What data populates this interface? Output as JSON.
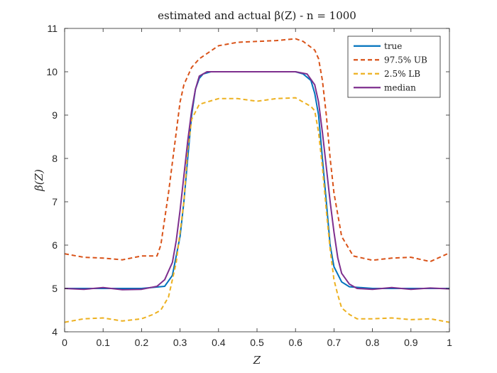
{
  "chart_data": {
    "type": "line",
    "title": "estimated and actual β(Z) - n = 1000",
    "xlabel": "Z",
    "ylabel": "β(Z)",
    "xlim": [
      0,
      1
    ],
    "ylim": [
      4,
      11
    ],
    "xticks": [
      0,
      0.1,
      0.2,
      0.3,
      0.4,
      0.5,
      0.6,
      0.7,
      0.8,
      0.9,
      1
    ],
    "xtick_labels": [
      "0",
      "0.1",
      "0.2",
      "0.3",
      "0.4",
      "0.5",
      "0.6",
      "0.7",
      "0.8",
      "0.9",
      "1"
    ],
    "yticks": [
      4,
      5,
      6,
      7,
      8,
      9,
      10,
      11
    ],
    "ytick_labels": [
      "4",
      "5",
      "6",
      "7",
      "8",
      "9",
      "10",
      "11"
    ],
    "grid": false,
    "legend_position": "top-right",
    "series": [
      {
        "name": "true",
        "color": "#0072BD",
        "dash": "solid",
        "x": [
          0,
          0.2,
          0.26,
          0.28,
          0.3,
          0.31,
          0.32,
          0.33,
          0.34,
          0.35,
          0.36,
          0.38,
          0.4,
          0.6,
          0.62,
          0.64,
          0.65,
          0.66,
          0.67,
          0.68,
          0.69,
          0.7,
          0.72,
          0.74,
          0.8,
          1
        ],
        "y": [
          5,
          5,
          5.05,
          5.3,
          6.2,
          7.0,
          8.0,
          9.0,
          9.6,
          9.85,
          9.95,
          10,
          10,
          10,
          9.95,
          9.8,
          9.5,
          9.0,
          8.0,
          7.0,
          6.0,
          5.5,
          5.15,
          5.04,
          5,
          5
        ]
      },
      {
        "name": "97.5% UB",
        "color": "#D95319",
        "dash": "dashed",
        "x": [
          0,
          0.05,
          0.1,
          0.15,
          0.2,
          0.24,
          0.25,
          0.27,
          0.29,
          0.3,
          0.31,
          0.33,
          0.35,
          0.4,
          0.45,
          0.5,
          0.55,
          0.6,
          0.62,
          0.65,
          0.66,
          0.67,
          0.68,
          0.69,
          0.7,
          0.72,
          0.74,
          0.75,
          0.8,
          0.85,
          0.9,
          0.95,
          1
        ],
        "y": [
          5.8,
          5.72,
          5.7,
          5.66,
          5.75,
          5.75,
          6.0,
          7.2,
          8.6,
          9.3,
          9.7,
          10.1,
          10.3,
          10.6,
          10.68,
          10.7,
          10.72,
          10.76,
          10.7,
          10.5,
          10.3,
          9.8,
          9.0,
          8.0,
          7.2,
          6.2,
          5.9,
          5.75,
          5.65,
          5.7,
          5.72,
          5.62,
          5.82
        ]
      },
      {
        "name": "2.5% LB",
        "color": "#EDB120",
        "dash": "dashed",
        "x": [
          0,
          0.05,
          0.1,
          0.15,
          0.2,
          0.23,
          0.25,
          0.27,
          0.29,
          0.31,
          0.32,
          0.33,
          0.35,
          0.4,
          0.45,
          0.5,
          0.55,
          0.6,
          0.64,
          0.65,
          0.66,
          0.67,
          0.68,
          0.69,
          0.7,
          0.71,
          0.72,
          0.74,
          0.76,
          0.8,
          0.85,
          0.9,
          0.95,
          1
        ],
        "y": [
          4.22,
          4.3,
          4.32,
          4.25,
          4.3,
          4.4,
          4.5,
          4.8,
          5.6,
          7.0,
          8.2,
          8.9,
          9.25,
          9.38,
          9.38,
          9.32,
          9.38,
          9.4,
          9.2,
          9.1,
          8.6,
          7.8,
          6.8,
          5.9,
          5.2,
          4.85,
          4.55,
          4.4,
          4.3,
          4.3,
          4.32,
          4.28,
          4.3,
          4.22
        ]
      },
      {
        "name": "median",
        "color": "#7E2F8E",
        "dash": "solid",
        "x": [
          0,
          0.05,
          0.1,
          0.15,
          0.2,
          0.24,
          0.26,
          0.28,
          0.29,
          0.3,
          0.31,
          0.32,
          0.33,
          0.34,
          0.35,
          0.37,
          0.4,
          0.45,
          0.5,
          0.55,
          0.6,
          0.63,
          0.65,
          0.66,
          0.67,
          0.68,
          0.69,
          0.7,
          0.71,
          0.72,
          0.74,
          0.76,
          0.8,
          0.85,
          0.9,
          0.95,
          1
        ],
        "y": [
          5.0,
          4.98,
          5.02,
          4.97,
          4.98,
          5.05,
          5.2,
          5.6,
          6.1,
          6.8,
          7.6,
          8.4,
          9.1,
          9.6,
          9.9,
          10.0,
          10.0,
          10.0,
          10.0,
          10.0,
          10.0,
          9.95,
          9.7,
          9.3,
          8.6,
          7.8,
          7.0,
          6.3,
          5.7,
          5.35,
          5.1,
          5.0,
          4.98,
          5.02,
          4.98,
          5.01,
          4.99
        ]
      }
    ]
  }
}
